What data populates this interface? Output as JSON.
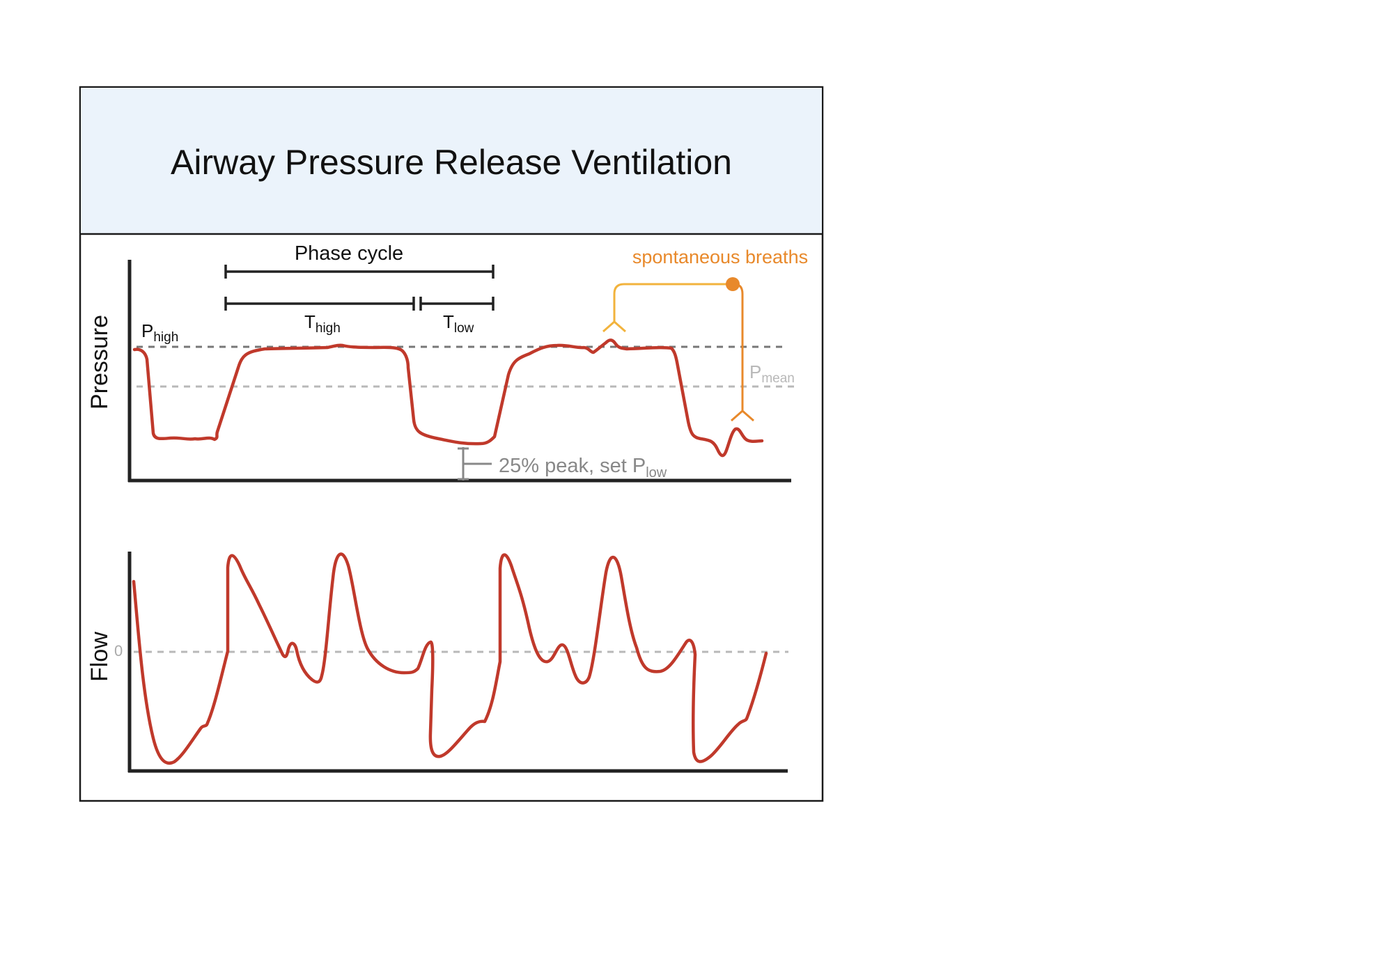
{
  "title": "Airway Pressure Release Ventilation",
  "colors": {
    "header_bg": "#ebf3fb",
    "frame": "#1a1a1a",
    "curve": "#c0392b",
    "axis": "#222222",
    "marker": "#222222",
    "p_high_line": "#777777",
    "p_mean": "#b8b8b8",
    "annotation_grey": "#888888",
    "spont_light": "#f2b33d",
    "spont_dark": "#e8892b"
  },
  "pressure_panel": {
    "axis_label": "Pressure",
    "phase_cycle_label": "Phase cycle",
    "t_high": {
      "main": "T",
      "sub": "high"
    },
    "t_low": {
      "main": "T",
      "sub": "low"
    },
    "p_high": {
      "main": "P",
      "sub": "high"
    },
    "p_mean": {
      "main": "P",
      "sub": "mean"
    },
    "plow_note": {
      "main": "25% peak, set P",
      "sub": "low"
    },
    "spontaneous_label": "spontaneous breaths"
  },
  "flow_panel": {
    "axis_label": "Flow",
    "zero_label": "0"
  }
}
